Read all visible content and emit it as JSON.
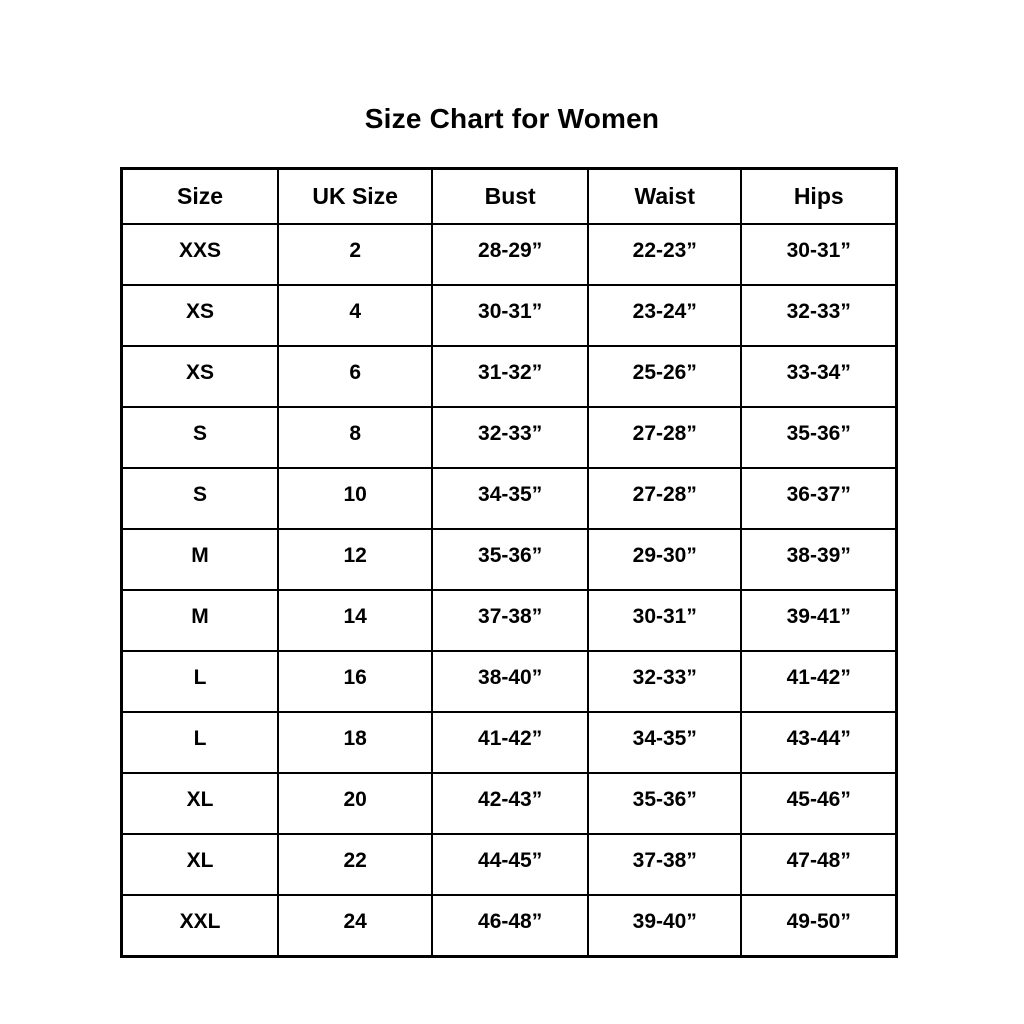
{
  "page": {
    "background_color": "#ffffff",
    "text_color": "#000000",
    "border_color": "#000000"
  },
  "title": "Size Chart for Women",
  "chart_data": {
    "type": "table",
    "title": "Size Chart for Women",
    "columns": [
      "Size",
      "UK Size",
      "Bust",
      "Waist",
      "Hips"
    ],
    "rows": [
      [
        "XXS",
        "2",
        "28-29”",
        "22-23”",
        "30-31”"
      ],
      [
        "XS",
        "4",
        "30-31”",
        "23-24”",
        "32-33”"
      ],
      [
        "XS",
        "6",
        "31-32”",
        "25-26”",
        "33-34”"
      ],
      [
        "S",
        "8",
        "32-33”",
        "27-28”",
        "35-36”"
      ],
      [
        "S",
        "10",
        "34-35”",
        "27-28”",
        "36-37”"
      ],
      [
        "M",
        "12",
        "35-36”",
        "29-30”",
        "38-39”"
      ],
      [
        "M",
        "14",
        "37-38”",
        "30-31”",
        "39-41”"
      ],
      [
        "L",
        "16",
        "38-40”",
        "32-33”",
        "41-42”"
      ],
      [
        "L",
        "18",
        "41-42”",
        "34-35”",
        "43-44”"
      ],
      [
        "XL",
        "20",
        "42-43”",
        "35-36”",
        "45-46”"
      ],
      [
        "XL",
        "22",
        "44-45”",
        "37-38”",
        "47-48”"
      ],
      [
        "XXL",
        "24",
        "46-48”",
        "39-40”",
        "49-50”"
      ]
    ],
    "layout": {
      "grid": true,
      "header_row": true,
      "text_align": "center"
    }
  }
}
